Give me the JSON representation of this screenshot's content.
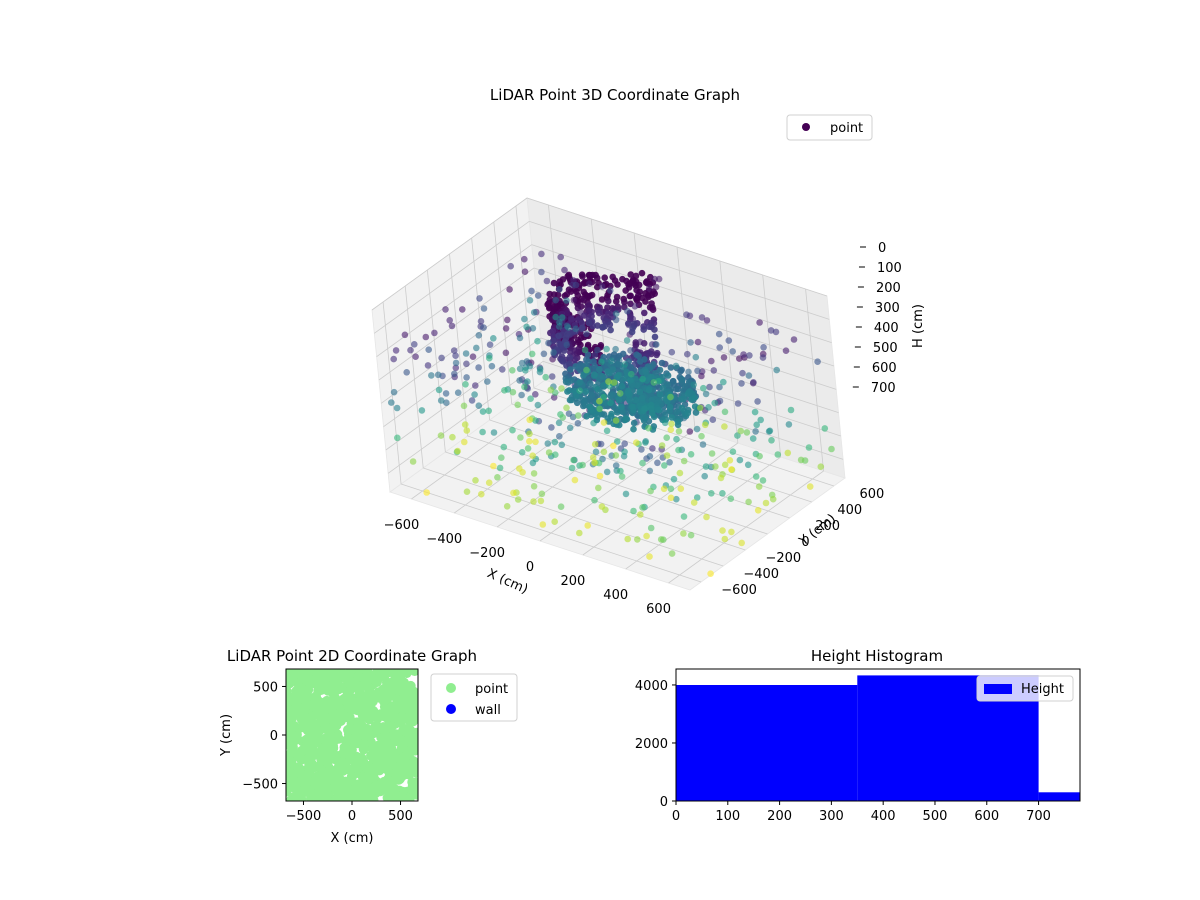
{
  "chart_data": [
    {
      "type": "scatter",
      "projection": "3d",
      "title": "LiDAR Point 3D Coordinate Graph",
      "xlabel": "X (cm)",
      "ylabel": "Y (cm)",
      "zlabel": "H (cm)",
      "xlim": [
        -700,
        700
      ],
      "ylim": [
        -700,
        700
      ],
      "zlim": [
        0,
        780
      ],
      "z_inverted": true,
      "x_ticks": [
        -600,
        -400,
        -200,
        0,
        200,
        400,
        600
      ],
      "y_ticks": [
        -600,
        -400,
        -200,
        0,
        200,
        400,
        600
      ],
      "z_ticks": [
        0,
        100,
        200,
        300,
        400,
        500,
        600,
        700
      ],
      "grid": true,
      "legend": {
        "placement": "top-right",
        "entries": [
          "point"
        ]
      },
      "colormap": "viridis",
      "series": [
        {
          "name": "point",
          "structure": [
            {
              "shape": "ring",
              "center": [
                60,
                80
              ],
              "radius": 300,
              "h_range": [
                0,
                250
              ],
              "arc_deg": [
                90,
                280
              ]
            },
            {
              "shape": "disc",
              "center": [
                80,
                60
              ],
              "radius": 280,
              "h_range": [
                330,
                420
              ]
            },
            {
              "shape": "pillar",
              "center": [
                150,
                50
              ],
              "radius": 70,
              "h_range": [
                170,
                430
              ]
            },
            {
              "shape": "scatter",
              "xy_range": [
                -700,
                700
              ],
              "h_range": [
                150,
                780
              ]
            }
          ]
        }
      ]
    },
    {
      "type": "scatter",
      "title": "LiDAR Point 2D Coordinate Graph",
      "xlabel": "X (cm)",
      "ylabel": "Y (cm)",
      "xlim": [
        -680,
        680
      ],
      "ylim": [
        -680,
        680
      ],
      "x_ticks": [
        -500,
        0,
        500
      ],
      "y_ticks": [
        -500,
        0,
        500
      ],
      "legend": {
        "placement": "outside-right",
        "entries": [
          "point",
          "wall"
        ]
      },
      "series": [
        {
          "name": "point",
          "color": "#90ee90",
          "extent": [
            -680,
            680
          ]
        },
        {
          "name": "wall",
          "color": "#0000ff",
          "count": 0
        }
      ]
    },
    {
      "type": "bar",
      "subtype": "histogram",
      "title": "Height Histogram",
      "xlim": [
        0,
        780
      ],
      "ylim": [
        0,
        4550
      ],
      "x_ticks": [
        0,
        100,
        200,
        300,
        400,
        500,
        600,
        700
      ],
      "y_ticks": [
        0,
        2000,
        4000
      ],
      "legend": {
        "placement": "top-right",
        "entries": [
          "Height"
        ]
      },
      "series": [
        {
          "name": "Height",
          "color": "#0000ff",
          "bin_edges": [
            0,
            350,
            700,
            780
          ],
          "values": [
            4000,
            4330,
            300
          ]
        }
      ]
    }
  ]
}
